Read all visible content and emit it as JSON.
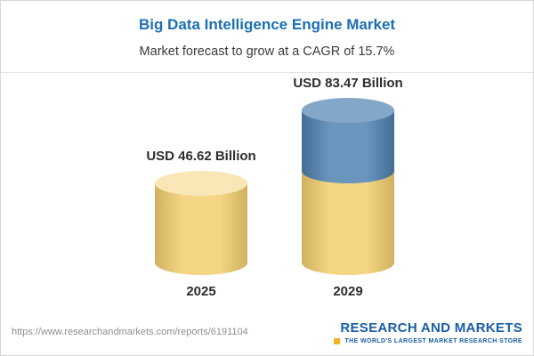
{
  "header": {
    "title": "Big Data Intelligence Engine Market",
    "subtitle": "Market forecast to grow at a CAGR of 15.7%"
  },
  "chart_data": {
    "type": "bar",
    "subtype": "3d-cylinder",
    "title": "Big Data Intelligence Engine Market",
    "subtitle": "Market forecast to grow at a CAGR of 15.7%",
    "cagr": "15.7%",
    "unit": "USD Billion",
    "categories": [
      "2025",
      "2029"
    ],
    "values": [
      46.62,
      83.47
    ],
    "value_labels": [
      "USD 46.62 Billion",
      "USD 83.47 Billion"
    ],
    "series_note": "2029 bar stacked: base equals 2025 value in gold, growth portion in blue",
    "colors": {
      "base": "#F2CE6E",
      "growth": "#4E81B0"
    },
    "legend": false,
    "grid": false,
    "axes": false
  },
  "colors": {
    "title_blue": "#1C6FB5",
    "brand_blue": "#1A5DA6",
    "accent_yellow": "#F5B324"
  },
  "footer": {
    "url": "https://www.researchandmarkets.com/reports/6191104",
    "brand": "RESEARCH AND MARKETS",
    "tagline": "THE WORLD'S LARGEST MARKET RESEARCH STORE"
  }
}
